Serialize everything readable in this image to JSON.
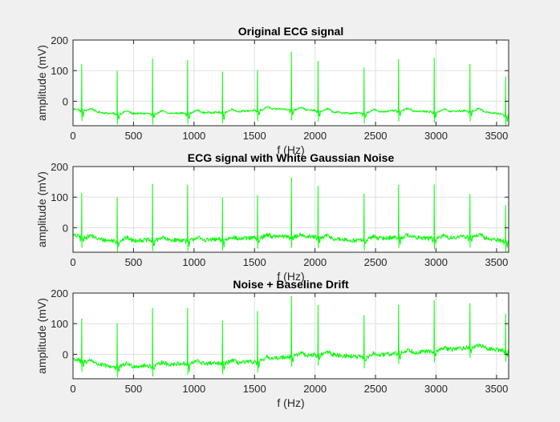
{
  "window": {
    "background": "#f0f0f0"
  },
  "colors": {
    "signal": "#00ff00",
    "axes_bg": "#ffffff",
    "grid": "#dfdfdf",
    "axis": "#262626"
  },
  "chart_data": [
    {
      "type": "line",
      "title": "Original ECG signal",
      "xlabel": "f (Hz)",
      "ylabel": "amplitude (mV)",
      "xlim": [
        0,
        3600
      ],
      "ylim": [
        -80,
        200
      ],
      "xticks": [
        0,
        500,
        1000,
        1500,
        2000,
        2500,
        3000,
        3500
      ],
      "yticks": [
        0,
        100,
        200
      ],
      "grid": true,
      "series": [
        {
          "color": "#00ff00",
          "baseline_x": [
            0,
            300,
            700,
            1000,
            1300,
            1700,
            2000,
            2300,
            2700,
            3000,
            3300,
            3600
          ],
          "baseline_y": [
            -25,
            -40,
            -40,
            -38,
            -35,
            -25,
            -30,
            -40,
            -30,
            -35,
            -30,
            -45
          ],
          "noise_amplitude": 3,
          "peaks": [
            {
              "x": 72,
              "y": 120
            },
            {
              "x": 365,
              "y": 98
            },
            {
              "x": 657,
              "y": 138
            },
            {
              "x": 947,
              "y": 133
            },
            {
              "x": 1235,
              "y": 95
            },
            {
              "x": 1525,
              "y": 100
            },
            {
              "x": 1805,
              "y": 160
            },
            {
              "x": 2025,
              "y": 130
            },
            {
              "x": 2405,
              "y": 108
            },
            {
              "x": 2690,
              "y": 136
            },
            {
              "x": 2985,
              "y": 140
            },
            {
              "x": 3280,
              "y": 120
            },
            {
              "x": 3575,
              "y": 78
            }
          ]
        }
      ]
    },
    {
      "type": "line",
      "title": "ECG signal with White Gaussian Noise",
      "xlabel": "f (Hz)",
      "ylabel": "amplitude (mV)",
      "xlim": [
        0,
        3600
      ],
      "ylim": [
        -80,
        200
      ],
      "xticks": [
        0,
        500,
        1000,
        1500,
        2000,
        2500,
        3000,
        3500
      ],
      "yticks": [
        0,
        100,
        200
      ],
      "grid": true,
      "series": [
        {
          "color": "#00ff00",
          "baseline_x": [
            0,
            300,
            700,
            1000,
            1300,
            1700,
            2000,
            2300,
            2700,
            3000,
            3300,
            3600
          ],
          "baseline_y": [
            -25,
            -42,
            -40,
            -40,
            -38,
            -28,
            -30,
            -42,
            -30,
            -35,
            -28,
            -45
          ],
          "noise_amplitude": 7,
          "peaks": [
            {
              "x": 72,
              "y": 112
            },
            {
              "x": 365,
              "y": 98
            },
            {
              "x": 657,
              "y": 142
            },
            {
              "x": 947,
              "y": 138
            },
            {
              "x": 1235,
              "y": 97
            },
            {
              "x": 1525,
              "y": 105
            },
            {
              "x": 1805,
              "y": 162
            },
            {
              "x": 2025,
              "y": 135
            },
            {
              "x": 2405,
              "y": 110
            },
            {
              "x": 2690,
              "y": 138
            },
            {
              "x": 2985,
              "y": 140
            },
            {
              "x": 3280,
              "y": 108
            },
            {
              "x": 3575,
              "y": 72
            }
          ]
        }
      ]
    },
    {
      "type": "line",
      "title": "Noise + Baseline Drift",
      "xlabel": "f (Hz)",
      "ylabel": "amplitude (mV)",
      "xlim": [
        0,
        3600
      ],
      "ylim": [
        -80,
        200
      ],
      "xticks": [
        0,
        500,
        1000,
        1500,
        2000,
        2500,
        3000,
        3500
      ],
      "yticks": [
        0,
        100,
        200
      ],
      "grid": true,
      "series": [
        {
          "color": "#00ff00",
          "baseline_x": [
            0,
            300,
            600,
            900,
            1200,
            1500,
            1800,
            2100,
            2400,
            2700,
            3000,
            3300,
            3600
          ],
          "baseline_y": [
            -15,
            -40,
            -38,
            -30,
            -30,
            -25,
            -5,
            0,
            -10,
            5,
            10,
            25,
            10
          ],
          "noise_amplitude": 7,
          "peaks": [
            {
              "x": 72,
              "y": 115
            },
            {
              "x": 365,
              "y": 100
            },
            {
              "x": 657,
              "y": 150
            },
            {
              "x": 947,
              "y": 150
            },
            {
              "x": 1235,
              "y": 108
            },
            {
              "x": 1525,
              "y": 140
            },
            {
              "x": 1805,
              "y": 188
            },
            {
              "x": 2025,
              "y": 160
            },
            {
              "x": 2405,
              "y": 125
            },
            {
              "x": 2690,
              "y": 160
            },
            {
              "x": 2985,
              "y": 175
            },
            {
              "x": 3280,
              "y": 165
            },
            {
              "x": 3575,
              "y": 130
            }
          ]
        }
      ]
    }
  ]
}
